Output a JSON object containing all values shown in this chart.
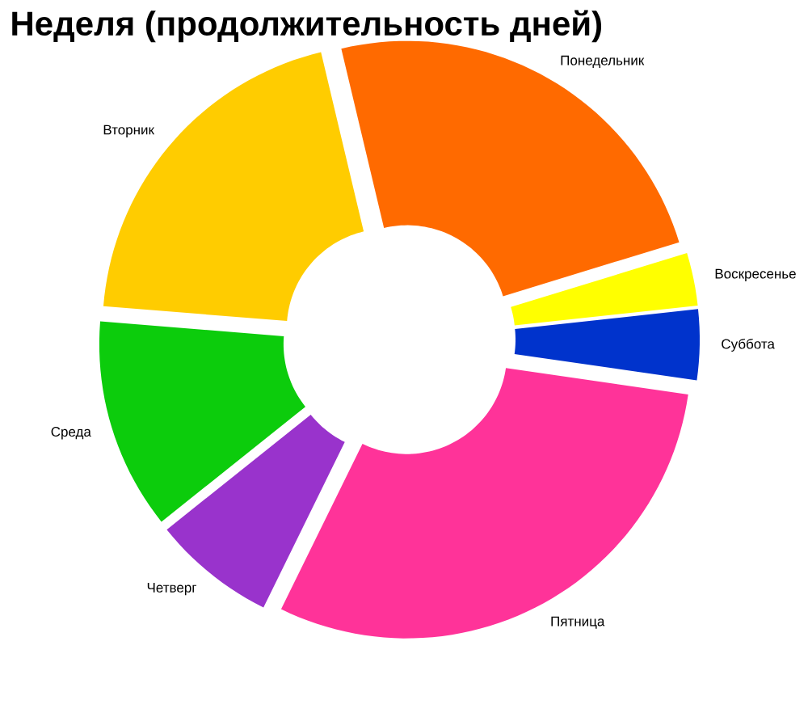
{
  "chart_data": {
    "type": "donut",
    "title": "Неделя (продолжительность дней)",
    "categories": [
      "Понедельник",
      "Вторник",
      "Среда",
      "Четверг",
      "Пятница",
      "Суббота",
      "Воскресенье"
    ],
    "values": [
      24,
      20,
      12,
      7,
      30,
      4,
      3
    ],
    "colors": [
      "#ff6a00",
      "#ffcc00",
      "#0ccc0c",
      "#9933cc",
      "#ff3399",
      "#0033cc",
      "#ffff00"
    ]
  }
}
